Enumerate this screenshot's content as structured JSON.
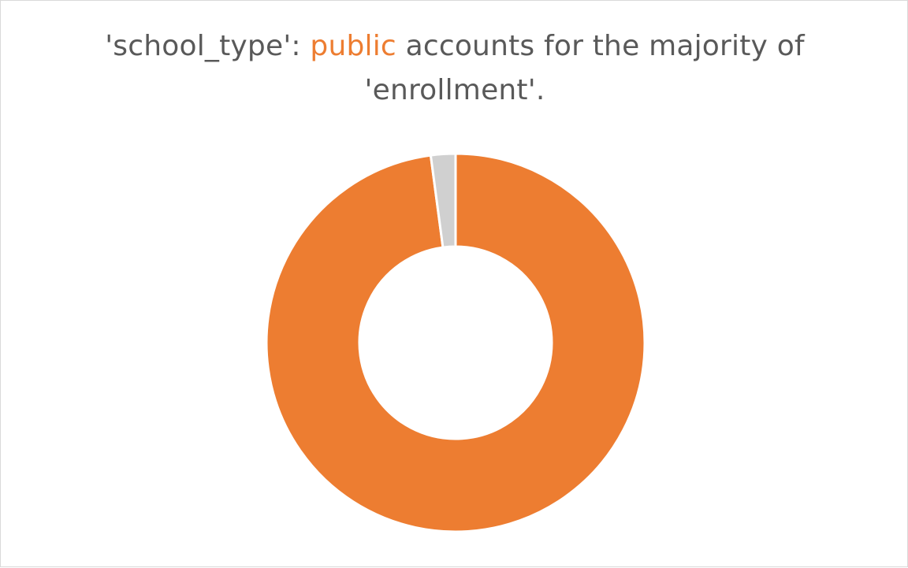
{
  "title": {
    "prefix": "'school_type': ",
    "highlight": "public",
    "rest": " accounts for the majority of",
    "line2": "'enrollment'."
  },
  "colors": {
    "title_text": "#595959",
    "highlight": "#ed7d31",
    "slice_public": "#ed7d31",
    "slice_other": "#d0d0d0",
    "separator": "#ffffff"
  },
  "chart_data": {
    "type": "pie",
    "style": "donut",
    "title": "'school_type': public accounts for the majority of 'enrollment'.",
    "categories": [
      "public",
      ""
    ],
    "values": [
      97.9,
      2.1
    ],
    "colors": [
      "#ed7d31",
      "#d0d0d0"
    ],
    "start_angle_deg": 0,
    "direction": "clockwise",
    "legend": "none",
    "data_labels": "none"
  }
}
